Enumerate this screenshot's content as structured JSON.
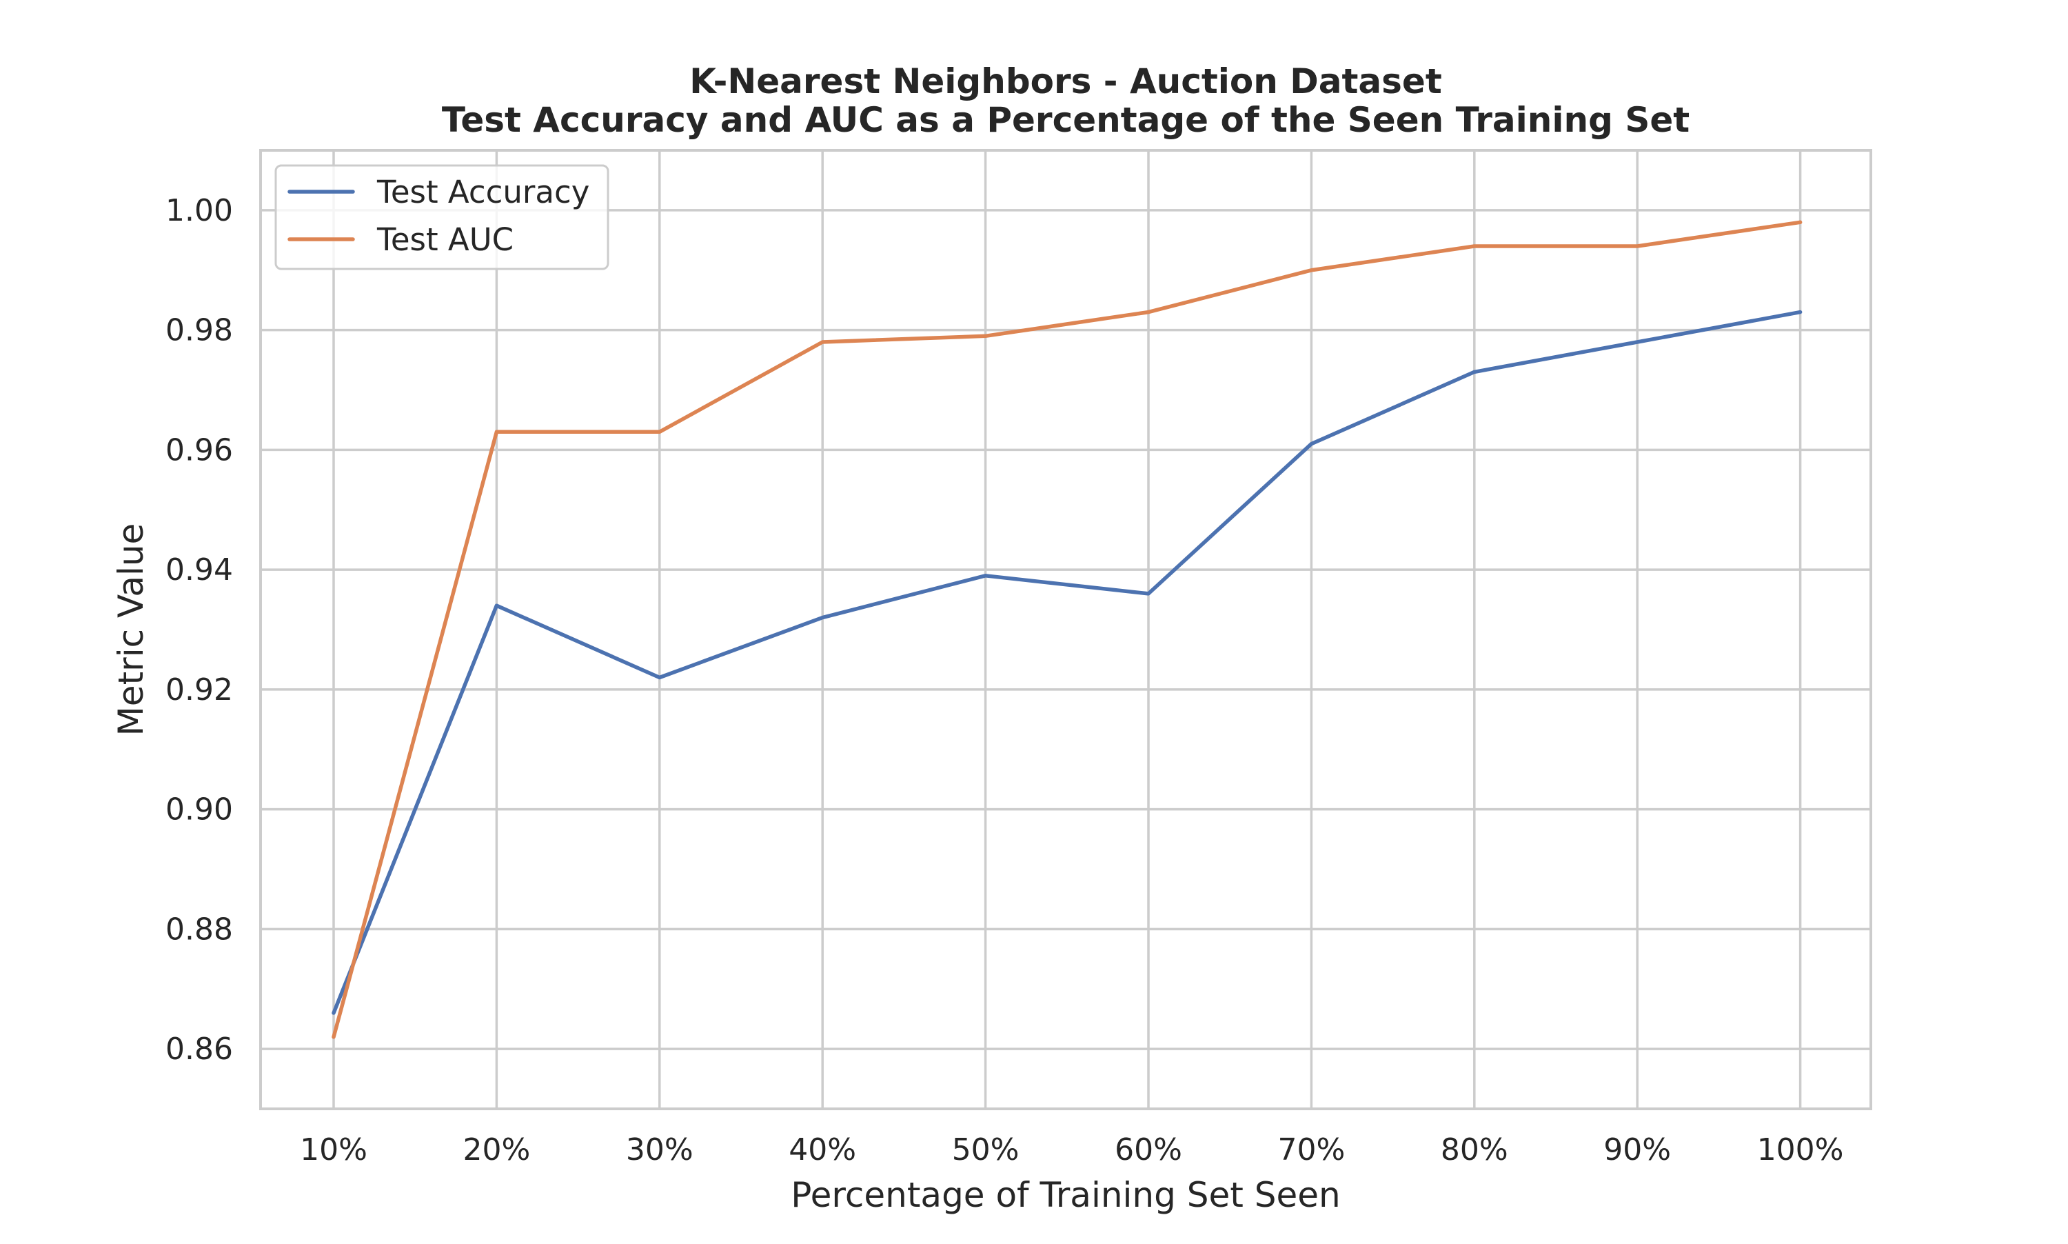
{
  "chart_data": {
    "type": "line",
    "title": "K-Nearest Neighbors - Auction Dataset",
    "subtitle": "Test Accuracy and AUC as a Percentage of the Seen Training Set",
    "xlabel": "Percentage of Training Set Seen",
    "ylabel": "Metric Value",
    "categories": [
      "10%",
      "20%",
      "30%",
      "40%",
      "50%",
      "60%",
      "70%",
      "80%",
      "90%",
      "100%"
    ],
    "ylim": [
      0.85,
      1.01
    ],
    "yticks": [
      0.86,
      0.88,
      0.9,
      0.92,
      0.94,
      0.96,
      0.98,
      1.0
    ],
    "ytick_labels": [
      "0.86",
      "0.88",
      "0.90",
      "0.92",
      "0.94",
      "0.96",
      "0.98",
      "1.00"
    ],
    "grid": true,
    "legend_position": "top-left",
    "series": [
      {
        "name": "Test Accuracy",
        "color": "#4c72b0",
        "values": [
          0.866,
          0.934,
          0.922,
          0.932,
          0.939,
          0.936,
          0.961,
          0.973,
          0.978,
          0.983
        ]
      },
      {
        "name": "Test AUC",
        "color": "#dd8452",
        "values": [
          0.862,
          0.963,
          0.963,
          0.978,
          0.979,
          0.983,
          0.99,
          0.994,
          0.994,
          0.998
        ]
      }
    ]
  }
}
